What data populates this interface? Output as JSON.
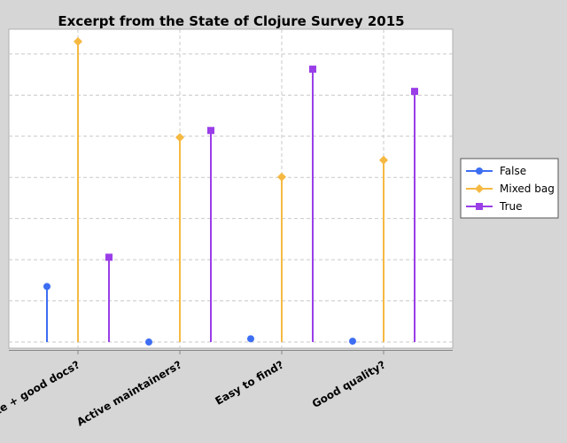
{
  "chart_data": {
    "type": "lollipop",
    "title": "Excerpt from the State of Clojure Survey 2015",
    "categories": [
      "Accurate + good docs?",
      "Active maintainers?",
      "Easy to find?",
      "Good quality?"
    ],
    "series": [
      {
        "name": "False",
        "values": [
          135,
          0,
          8,
          2
        ],
        "color": "#3d6ef2",
        "marker": "circle"
      },
      {
        "name": "Mixed bag",
        "values": [
          730,
          497,
          401,
          442
        ],
        "color": "#f5b942",
        "marker": "diamond"
      },
      {
        "name": "True",
        "values": [
          206,
          514,
          663,
          609
        ],
        "color": "#9a3ee8",
        "marker": "square"
      }
    ],
    "xlabel": "",
    "ylabel": "",
    "ylim": [
      -15,
      760
    ],
    "grid": true,
    "legend": "right",
    "y_axis_tick_labels_visible": false
  }
}
